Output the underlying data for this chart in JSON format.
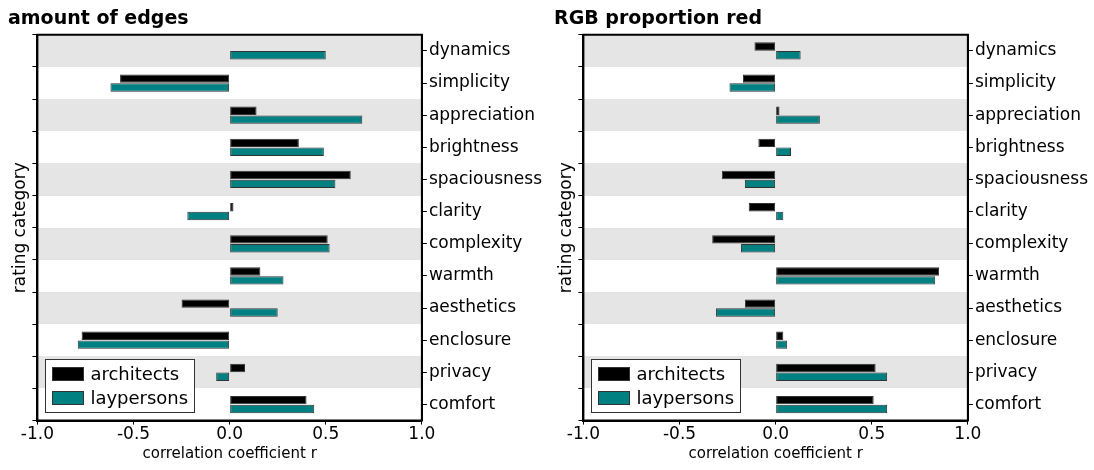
{
  "chart_data": [
    {
      "type": "bar",
      "orientation": "horizontal",
      "title": "amount of edges",
      "xlabel": "correlation coefficient r",
      "ylabel": "rating category",
      "categories": [
        "dynamics",
        "simplicity",
        "appreciation",
        "brightness",
        "spaciousness",
        "clarity",
        "complexity",
        "warmth",
        "aesthetics",
        "enclosure",
        "privacy",
        "comfort"
      ],
      "series": [
        {
          "name": "architects",
          "color": "#000000",
          "values": [
            0.0,
            -0.57,
            0.14,
            0.36,
            0.63,
            0.02,
            0.51,
            0.16,
            -0.25,
            -0.77,
            0.08,
            0.4
          ]
        },
        {
          "name": "laypersons",
          "color": "#008080",
          "values": [
            0.5,
            -0.62,
            0.69,
            0.49,
            0.55,
            -0.22,
            0.52,
            0.28,
            0.25,
            -0.79,
            -0.07,
            0.44
          ]
        }
      ],
      "xlim": [
        -1,
        1
      ],
      "xticks": [
        {
          "value": -1,
          "label": "-1.0"
        },
        {
          "value": -0.5,
          "label": "-0.5"
        },
        {
          "value": 0,
          "label": "0.0"
        },
        {
          "value": 0.5,
          "label": "0.5"
        },
        {
          "value": 1,
          "label": "1.0"
        }
      ],
      "legend": "bottom left"
    },
    {
      "type": "bar",
      "orientation": "horizontal",
      "title": "RGB proportion red",
      "xlabel": "correlation coefficient r",
      "ylabel": "rating category",
      "categories": [
        "dynamics",
        "simplicity",
        "appreciation",
        "brightness",
        "spaciousness",
        "clarity",
        "complexity",
        "warmth",
        "aesthetics",
        "enclosure",
        "privacy",
        "comfort"
      ],
      "series": [
        {
          "name": "architects",
          "color": "#000000",
          "values": [
            -0.11,
            -0.17,
            0.02,
            -0.09,
            -0.28,
            -0.14,
            -0.33,
            0.85,
            -0.16,
            0.04,
            0.52,
            0.51
          ]
        },
        {
          "name": "laypersons",
          "color": "#008080",
          "values": [
            0.13,
            -0.24,
            0.23,
            0.08,
            -0.16,
            0.04,
            -0.18,
            0.83,
            -0.31,
            0.06,
            0.58,
            0.58
          ]
        }
      ],
      "xlim": [
        -1,
        1
      ],
      "xticks": [
        {
          "value": -1,
          "label": "-1.0"
        },
        {
          "value": -0.5,
          "label": "-0.5"
        },
        {
          "value": 0,
          "label": "0.0"
        },
        {
          "value": 0.5,
          "label": "0.5"
        },
        {
          "value": 1,
          "label": "1.0"
        }
      ],
      "legend": "bottom left"
    }
  ]
}
